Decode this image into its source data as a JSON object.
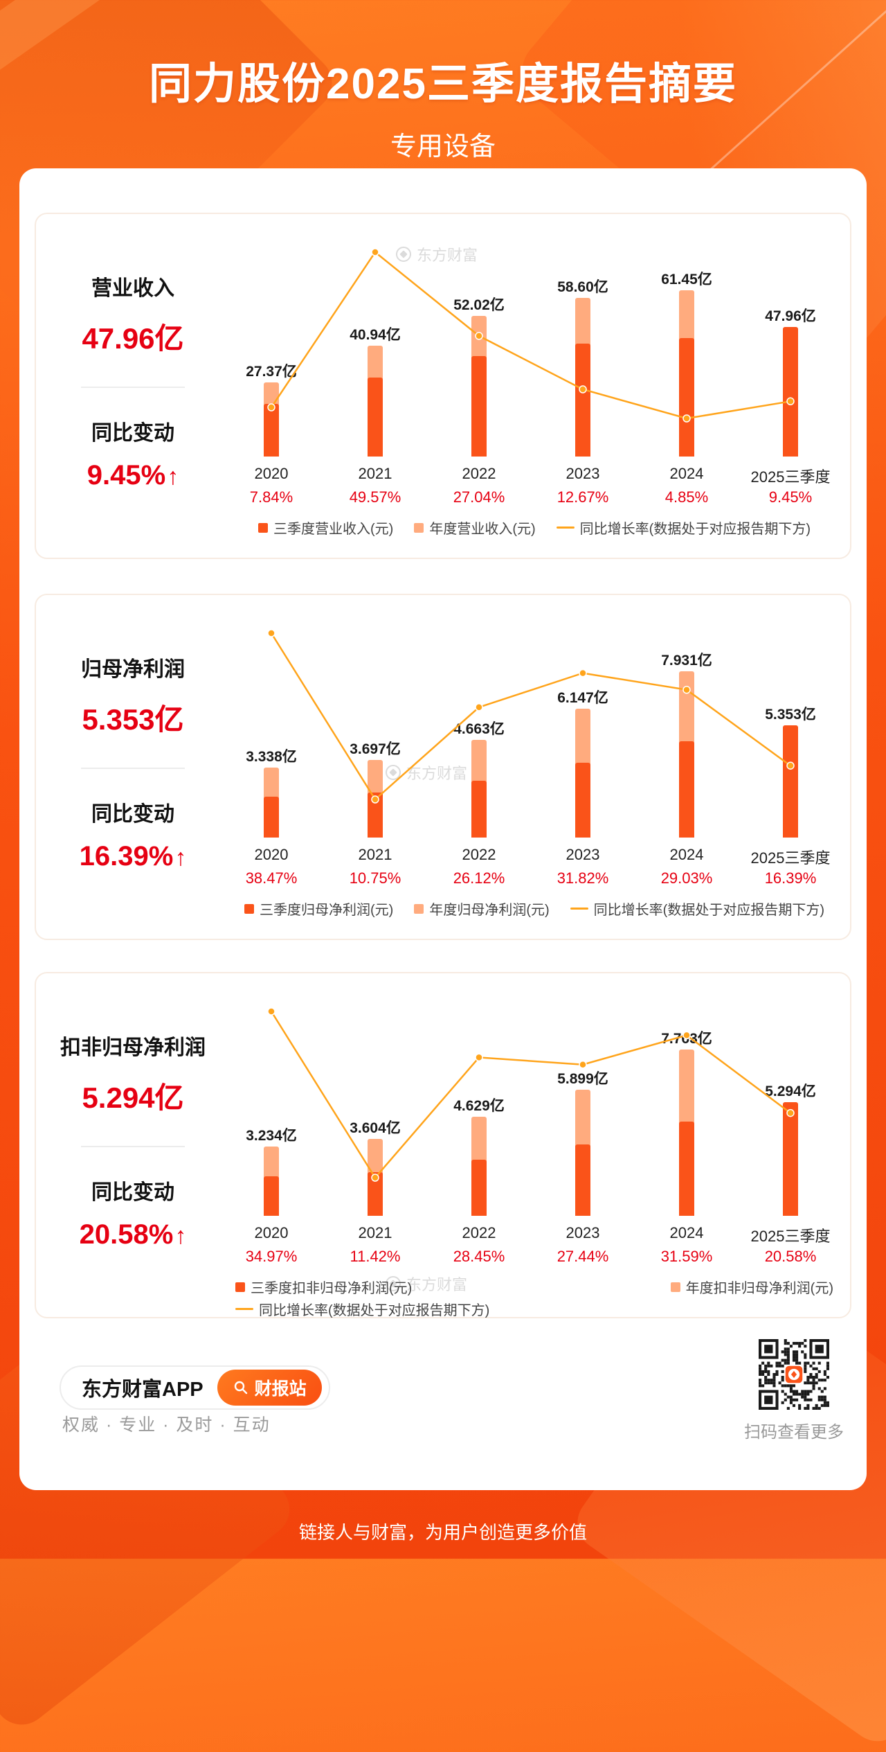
{
  "header": {
    "title": "同力股份2025三季度报告摘要",
    "subtitle": "专用设备"
  },
  "watermark": "东方财富",
  "colors": {
    "q3_bar": "#FA5319",
    "annual_bar": "#FFAB7E",
    "line": "#FFA41B",
    "red": "#E60012",
    "background_orange": "#F85210"
  },
  "chart_data": [
    {
      "type": "bar+line",
      "title": "营业收入",
      "categories": [
        "2020",
        "2021",
        "2022",
        "2023",
        "2024",
        "2025三季度"
      ],
      "series": [
        {
          "name": "三季度营业收入(元)",
          "unit": "亿",
          "values": [
            19.5,
            29.2,
            37.1,
            41.8,
            43.8,
            47.96
          ]
        },
        {
          "name": "年度营业收入(元)",
          "unit": "亿",
          "values": [
            27.37,
            40.94,
            52.02,
            58.6,
            61.45,
            null
          ]
        }
      ],
      "q3_values_estimated": true,
      "bar_labels": [
        "27.37亿",
        "40.94亿",
        "52.02亿",
        "58.60亿",
        "61.45亿",
        "47.96亿"
      ],
      "growth_line": {
        "name": "同比增长率(数据处于对应报告期下方)",
        "values_pct": [
          7.84,
          49.57,
          27.04,
          12.67,
          4.85,
          9.45
        ]
      },
      "growth_labels": [
        "7.84%",
        "49.57%",
        "27.04%",
        "12.67%",
        "4.85%",
        "9.45%"
      ],
      "legend_position": "bottom"
    },
    {
      "type": "bar+line",
      "title": "归母净利润",
      "categories": [
        "2020",
        "2021",
        "2022",
        "2023",
        "2024",
        "2025三季度"
      ],
      "series": [
        {
          "name": "三季度归母净利润(元)",
          "unit": "亿",
          "values": [
            1.94,
            2.14,
            2.7,
            3.56,
            4.6,
            5.353
          ]
        },
        {
          "name": "年度归母净利润(元)",
          "unit": "亿",
          "values": [
            3.338,
            3.697,
            4.663,
            6.147,
            7.931,
            null
          ]
        }
      ],
      "q3_values_estimated": true,
      "bar_labels": [
        "3.338亿",
        "3.697亿",
        "4.663亿",
        "6.147亿",
        "7.931亿",
        "5.353亿"
      ],
      "growth_line": {
        "name": "同比增长率(数据处于对应报告期下方)",
        "values_pct": [
          38.47,
          10.75,
          26.12,
          31.82,
          29.03,
          16.39
        ]
      },
      "growth_labels": [
        "38.47%",
        "10.75%",
        "26.12%",
        "31.82%",
        "29.03%",
        "16.39%"
      ],
      "legend_position": "bottom"
    },
    {
      "type": "bar+line",
      "title": "扣非归母净利润",
      "categories": [
        "2020",
        "2021",
        "2022",
        "2023",
        "2024",
        "2025三季度"
      ],
      "series": [
        {
          "name": "三季度扣非归母净利润(元)",
          "unit": "亿",
          "values": [
            1.83,
            2.04,
            2.62,
            3.34,
            4.39,
            5.294
          ]
        },
        {
          "name": "年度扣非归母净利润(元)",
          "unit": "亿",
          "values": [
            3.234,
            3.604,
            4.629,
            5.899,
            7.763,
            null
          ]
        }
      ],
      "q3_values_estimated": true,
      "bar_labels": [
        "3.234亿",
        "3.604亿",
        "4.629亿",
        "5.899亿",
        "7.763亿",
        "5.294亿"
      ],
      "growth_line": {
        "name": "同比增长率(数据处于对应报告期下方)",
        "values_pct": [
          34.97,
          11.42,
          28.45,
          27.44,
          31.59,
          20.58
        ]
      },
      "growth_labels": [
        "34.97%",
        "11.42%",
        "28.45%",
        "27.44%",
        "31.59%",
        "20.58%"
      ],
      "legend_position": "bottom"
    }
  ],
  "charts": [
    {
      "metric": {
        "label": "营业收入",
        "value": "47.96亿",
        "yoy_label": "同比变动",
        "yoy_value": "9.45%",
        "arrow": "↑"
      },
      "legend_layout": "row",
      "legend": [
        {
          "type": "square",
          "color": "q3",
          "label": "三季度营业收入(元)"
        },
        {
          "type": "square",
          "color": "annual",
          "label": "年度营业收入(元)"
        },
        {
          "type": "line",
          "label": "同比增长率(数据处于对应报告期下方)"
        }
      ]
    },
    {
      "metric": {
        "label": "归母净利润",
        "value": "5.353亿",
        "yoy_label": "同比变动",
        "yoy_value": "16.39%",
        "arrow": "↑"
      },
      "legend_layout": "row",
      "legend": [
        {
          "type": "square",
          "color": "q3",
          "label": "三季度归母净利润(元)"
        },
        {
          "type": "square",
          "color": "annual",
          "label": "年度归母净利润(元)"
        },
        {
          "type": "line",
          "label": "同比增长率(数据处于对应报告期下方)"
        }
      ]
    },
    {
      "metric": {
        "label": "扣非归母净利润",
        "value": "5.294亿",
        "yoy_label": "同比变动",
        "yoy_value": "20.58%",
        "arrow": "↑"
      },
      "legend_layout": "two-row",
      "legend": [
        {
          "type": "square",
          "color": "q3",
          "label": "三季度扣非归母净利润(元)"
        },
        {
          "type": "square",
          "color": "annual",
          "label": "年度扣非归母净利润(元)"
        },
        {
          "type": "line",
          "label": "同比增长率(数据处于对应报告期下方)"
        }
      ]
    }
  ],
  "footer": {
    "app_label": "东方财富APP",
    "app_button": "财报站",
    "tagline": "权威 · 专业 · 及时 · 互动",
    "qr_caption": "扫码查看更多",
    "slogan": "链接人与财富，为用户创造更多价值"
  }
}
